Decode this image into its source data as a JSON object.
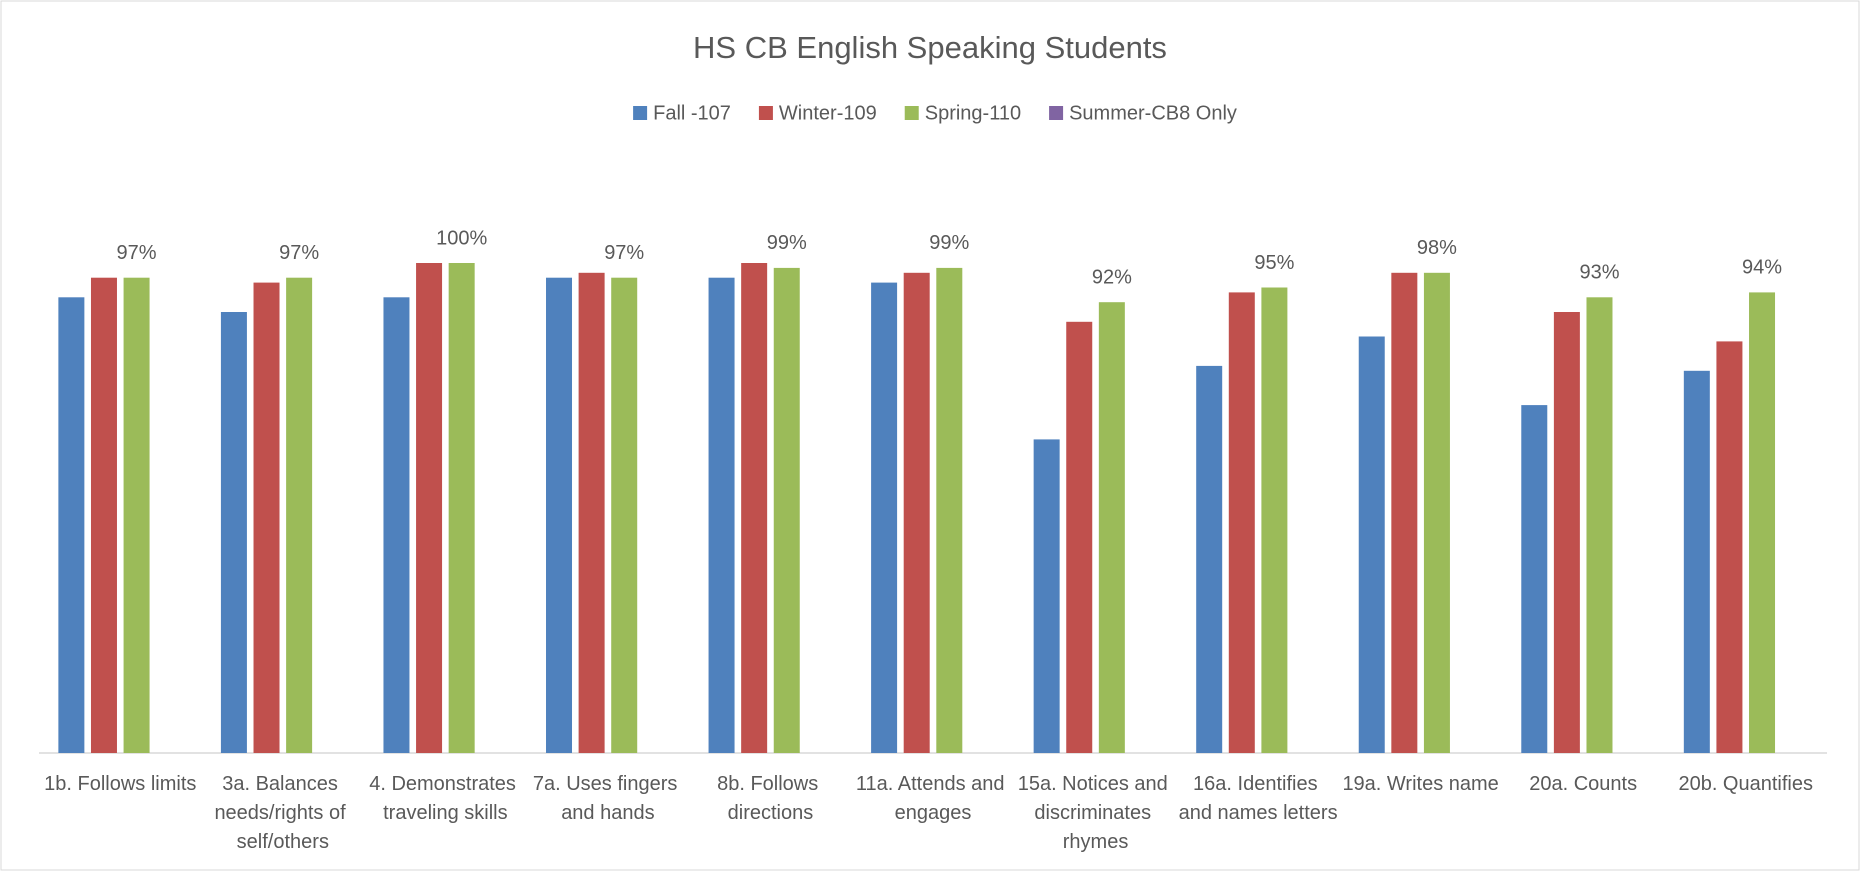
{
  "chart_data": {
    "type": "bar",
    "title": "HS CB English Speaking Students",
    "categories": [
      "1b. Follows limits",
      "3a. Balances needs/rights of self/others",
      "4. Demonstrates traveling skills",
      "7a.  Uses fingers and hands",
      "8b. Follows directions",
      "11a. Attends and engages",
      "15a. Notices and discriminates rhymes",
      "16a. Identifies and names letters",
      "19a. Writes name",
      "20a. Counts",
      "20b. Quantifies"
    ],
    "series": [
      {
        "name": "Fall -107",
        "color": "#4f81bd",
        "values": [
          93,
          90,
          93,
          97,
          97,
          96,
          64,
          79,
          85,
          71,
          78
        ]
      },
      {
        "name": "Winter-109",
        "color": "#c0504d",
        "values": [
          97,
          96,
          100,
          98,
          100,
          98,
          88,
          94,
          98,
          90,
          84
        ]
      },
      {
        "name": "Spring-110",
        "color": "#9bbb59",
        "values": [
          97,
          97,
          100,
          97,
          99,
          99,
          92,
          95,
          98,
          93,
          94
        ],
        "value_labels": [
          "97%",
          "97%",
          "100%",
          "97%",
          "99%",
          "99%",
          "92%",
          "95%",
          "98%",
          "93%",
          "94%"
        ]
      },
      {
        "name": "Summer-CB8 Only",
        "color": "#8064a2",
        "values": [
          null,
          null,
          null,
          null,
          null,
          null,
          null,
          null,
          null,
          null,
          null
        ]
      }
    ],
    "ylim": [
      0,
      100
    ],
    "legend": "top"
  }
}
